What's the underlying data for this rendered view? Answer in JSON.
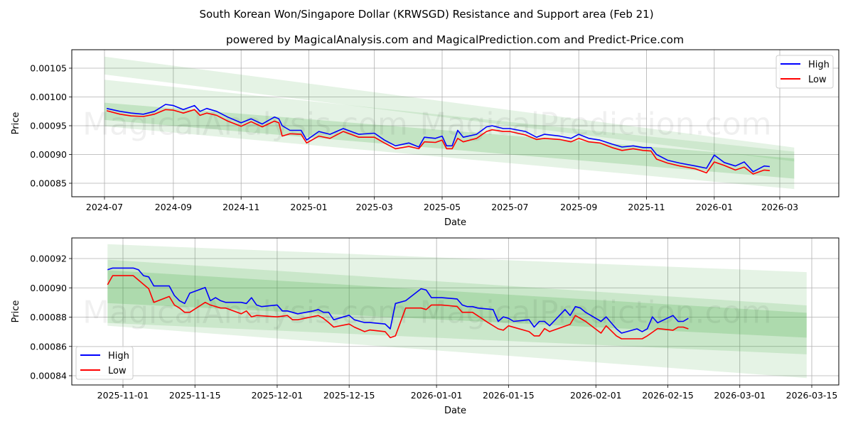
{
  "header": {
    "title": "South Korean Won/Singapore Dollar (KRWSGD) Resistance and Support area (Feb 21)",
    "subtitle": "powered by MagicalAnalysis.com and MagicalPrediction.com and Predict-Price.com"
  },
  "watermarks": [
    "MagicalAnalysis.com",
    "MagicalPrediction.com"
  ],
  "colors": {
    "high": "#0000ff",
    "low": "#ff0000",
    "band": "#2ca02c"
  },
  "chart_data": [
    {
      "type": "line",
      "title": "",
      "xlabel": "Date",
      "ylabel": "Price",
      "ylim": [
        0.000826,
        0.001085
      ],
      "xlim": [
        "2024-05-24",
        "2026-04-05"
      ],
      "grid": true,
      "legend": {
        "placement": "top-right",
        "entries": [
          "High",
          "Low"
        ]
      },
      "xticks": [
        "2024-07",
        "2024-09",
        "2024-11",
        "2025-01",
        "2025-03",
        "2025-05",
        "2025-07",
        "2025-09",
        "2025-11",
        "2026-01",
        "2026-03"
      ],
      "yticks": [
        "0.00085",
        "0.00090",
        "0.00095",
        "0.00100",
        "0.00105"
      ],
      "bands": [
        {
          "start": "2024-07-01",
          "end": "2026-03-14",
          "top": [
            0.00107,
            0.000912
          ],
          "bottom": [
            0.001039,
            0.000888
          ],
          "opacity": 0.12
        },
        {
          "start": "2024-07-01",
          "end": "2026-03-14",
          "top": [
            0.00103,
            0.000905
          ],
          "bottom": [
            0.000949,
            0.00084
          ],
          "opacity": 0.12
        },
        {
          "start": "2024-07-01",
          "end": "2026-03-14",
          "top": [
            0.00099,
            0.000893
          ],
          "bottom": [
            0.00096,
            0.000858
          ],
          "opacity": 0.18
        }
      ],
      "x": [
        "2024-07-03",
        "2024-07-15",
        "2024-07-25",
        "2024-08-05",
        "2024-08-15",
        "2024-08-25",
        "2024-09-01",
        "2024-09-10",
        "2024-09-20",
        "2024-09-25",
        "2024-10-01",
        "2024-10-10",
        "2024-10-20",
        "2024-11-01",
        "2024-11-10",
        "2024-11-20",
        "2024-12-01",
        "2024-12-05",
        "2024-12-08",
        "2024-12-15",
        "2024-12-25",
        "2024-12-30",
        "2025-01-10",
        "2025-01-20",
        "2025-02-01",
        "2025-02-15",
        "2025-03-01",
        "2025-03-10",
        "2025-03-20",
        "2025-04-01",
        "2025-04-10",
        "2025-04-15",
        "2025-04-25",
        "2025-05-01",
        "2025-05-05",
        "2025-05-10",
        "2025-05-15",
        "2025-05-20",
        "2025-06-01",
        "2025-06-10",
        "2025-06-15",
        "2025-06-25",
        "2025-07-01",
        "2025-07-15",
        "2025-07-25",
        "2025-08-01",
        "2025-08-15",
        "2025-08-25",
        "2025-09-01",
        "2025-09-10",
        "2025-09-20",
        "2025-10-01",
        "2025-10-10",
        "2025-10-20",
        "2025-10-29",
        "2025-11-05",
        "2025-11-10",
        "2025-11-20",
        "2025-12-01",
        "2025-12-15",
        "2025-12-25",
        "2026-01-01",
        "2026-01-10",
        "2026-01-20",
        "2026-01-28",
        "2026-02-05",
        "2026-02-15",
        "2026-02-20"
      ],
      "series": [
        {
          "name": "High",
          "values": [
            0.00098,
            0.000975,
            0.000972,
            0.00097,
            0.000975,
            0.000987,
            0.000985,
            0.000978,
            0.000985,
            0.000975,
            0.00098,
            0.000975,
            0.000965,
            0.000955,
            0.000962,
            0.000953,
            0.000965,
            0.000962,
            0.00095,
            0.000942,
            0.000942,
            0.000925,
            0.00094,
            0.000935,
            0.000945,
            0.000935,
            0.000937,
            0.000925,
            0.000915,
            0.00092,
            0.000913,
            0.00093,
            0.000928,
            0.000932,
            0.000915,
            0.000915,
            0.000942,
            0.00093,
            0.000935,
            0.000948,
            0.00095,
            0.000945,
            0.000945,
            0.00094,
            0.00093,
            0.000935,
            0.000932,
            0.000928,
            0.000935,
            0.000928,
            0.000925,
            0.000918,
            0.000913,
            0.000915,
            0.000912,
            0.000912,
            0.0009,
            0.00089,
            0.000885,
            0.00088,
            0.000876,
            0.000899,
            0.000886,
            0.00088,
            0.000887,
            0.00087,
            0.00088,
            0.000879
          ]
        },
        {
          "name": "Low",
          "values": [
            0.000976,
            0.00097,
            0.000967,
            0.000966,
            0.00097,
            0.000978,
            0.000977,
            0.000972,
            0.000978,
            0.000968,
            0.000972,
            0.000968,
            0.000958,
            0.000949,
            0.000957,
            0.000948,
            0.000958,
            0.000955,
            0.000932,
            0.000936,
            0.000935,
            0.00092,
            0.000932,
            0.000928,
            0.00094,
            0.00093,
            0.00093,
            0.00092,
            0.00091,
            0.000914,
            0.00091,
            0.000922,
            0.000921,
            0.000925,
            0.00091,
            0.00091,
            0.000928,
            0.000922,
            0.000928,
            0.00094,
            0.000943,
            0.00094,
            0.00094,
            0.000934,
            0.000926,
            0.000928,
            0.000926,
            0.000922,
            0.000928,
            0.000922,
            0.00092,
            0.000912,
            0.000907,
            0.00091,
            0.000907,
            0.000906,
            0.000892,
            0.000885,
            0.00088,
            0.000875,
            0.000868,
            0.000887,
            0.000881,
            0.000873,
            0.000878,
            0.000866,
            0.000873,
            0.000872
          ]
        }
      ]
    },
    {
      "type": "line",
      "title": "",
      "xlabel": "Date",
      "ylabel": "Price",
      "ylim": [
        0.0008325,
        0.0009345
      ],
      "xlim": [
        "2025-10-21",
        "2026-03-22"
      ],
      "grid": true,
      "legend": {
        "placement": "lower-left",
        "entries": [
          "High",
          "Low"
        ]
      },
      "xticks": [
        "2025-11-01",
        "2025-11-15",
        "2025-12-01",
        "2025-12-15",
        "2026-01-01",
        "2026-01-15",
        "2026-02-01",
        "2026-02-15",
        "2026-03-01",
        "2026-03-15"
      ],
      "yticks": [
        "0.00084",
        "0.00086",
        "0.00088",
        "0.00090",
        "0.00092"
      ],
      "start_date": "2025-10-29",
      "bands": [
        {
          "start_day": 0,
          "end_day": 136,
          "top": [
            0.0009298,
            0.0009107
          ],
          "bottom": [
            0.0008741,
            0.0008384
          ],
          "opacity": 0.12
        },
        {
          "start_day": 0,
          "end_day": 136,
          "top": [
            0.0009192,
            0.000888
          ],
          "bottom": [
            0.000876,
            0.0008546
          ],
          "opacity": 0.14
        },
        {
          "start_day": 0,
          "end_day": 136,
          "top": [
            0.000912,
            0.000883
          ],
          "bottom": [
            0.0008896,
            0.000866
          ],
          "opacity": 0.18
        }
      ],
      "series": [
        {
          "name": "High",
          "days": [
            0,
            1,
            5,
            6,
            7,
            8,
            9,
            12,
            13,
            14,
            15,
            16,
            19,
            20,
            21,
            22,
            23,
            26,
            27,
            28,
            29,
            30,
            33,
            34,
            35,
            37,
            40,
            41,
            42,
            43,
            44,
            47,
            48,
            50,
            51,
            54,
            55,
            56,
            58,
            61,
            62,
            63,
            65,
            68,
            69,
            70,
            71,
            72,
            75,
            76,
            77,
            78,
            79,
            82,
            83,
            84,
            85,
            86,
            89,
            90,
            91,
            92,
            93,
            96,
            97,
            99,
            100,
            103,
            104,
            105,
            106,
            107,
            110,
            111,
            112,
            113
          ],
          "values": [
            0.0009124,
            0.0009135,
            0.0009135,
            0.0009124,
            0.0009083,
            0.0009075,
            0.0009013,
            0.0009013,
            0.0008948,
            0.0008912,
            0.0008893,
            0.0008964,
            0.0009002,
            0.0008912,
            0.0008933,
            0.0008912,
            0.0008901,
            0.0008901,
            0.0008893,
            0.0008933,
            0.0008883,
            0.0008872,
            0.0008883,
            0.0008842,
            0.0008842,
            0.0008823,
            0.0008842,
            0.0008852,
            0.0008833,
            0.0008833,
            0.0008782,
            0.0008813,
            0.0008782,
            0.0008763,
            0.0008763,
            0.0008753,
            0.000872,
            0.0008893,
            0.0008912,
            0.0008994,
            0.0008985,
            0.0008933,
            0.0008933,
            0.0008924,
            0.0008883,
            0.0008872,
            0.0008872,
            0.0008862,
            0.0008852,
            0.0008771,
            0.0008802,
            0.0008792,
            0.0008771,
            0.0008782,
            0.0008732,
            0.0008771,
            0.0008771,
            0.0008741,
            0.0008852,
            0.0008811,
            0.0008872,
            0.0008862,
            0.0008833,
            0.0008771,
            0.0008802,
            0.000872,
            0.0008691,
            0.000872,
            0.0008701,
            0.000872,
            0.0008802,
            0.0008761,
            0.0008811,
            0.0008771,
            0.0008771,
            0.0008792
          ]
        },
        {
          "name": "Low",
          "days": [
            0,
            1,
            5,
            8,
            9,
            12,
            13,
            14,
            15,
            16,
            19,
            20,
            22,
            23,
            26,
            27,
            28,
            29,
            33,
            35,
            36,
            37,
            41,
            42,
            43,
            44,
            47,
            48,
            50,
            51,
            54,
            55,
            56,
            58,
            61,
            62,
            63,
            65,
            68,
            69,
            71,
            74,
            76,
            77,
            78,
            82,
            83,
            84,
            85,
            86,
            90,
            91,
            93,
            96,
            97,
            99,
            100,
            104,
            105,
            107,
            110,
            111,
            112,
            113
          ],
          "values": [
            0.0009021,
            0.0009083,
            0.0009083,
            0.0008994,
            0.0008901,
            0.0008941,
            0.0008883,
            0.0008862,
            0.0008833,
            0.0008833,
            0.0008901,
            0.0008883,
            0.0008862,
            0.0008862,
            0.0008823,
            0.0008842,
            0.0008802,
            0.0008811,
            0.0008802,
            0.0008811,
            0.0008782,
            0.0008782,
            0.0008811,
            0.0008792,
            0.0008763,
            0.0008732,
            0.0008753,
            0.0008732,
            0.0008701,
            0.0008712,
            0.0008701,
            0.000866,
            0.0008672,
            0.0008862,
            0.0008862,
            0.0008852,
            0.0008883,
            0.0008883,
            0.0008873,
            0.0008833,
            0.0008833,
            0.0008763,
            0.000872,
            0.0008711,
            0.0008741,
            0.0008701,
            0.0008672,
            0.0008672,
            0.0008722,
            0.0008701,
            0.0008751,
            0.0008811,
            0.0008771,
            0.0008691,
            0.0008741,
            0.0008672,
            0.0008652,
            0.0008652,
            0.0008672,
            0.0008722,
            0.0008711,
            0.0008732,
            0.0008732,
            0.000872
          ]
        }
      ]
    }
  ]
}
